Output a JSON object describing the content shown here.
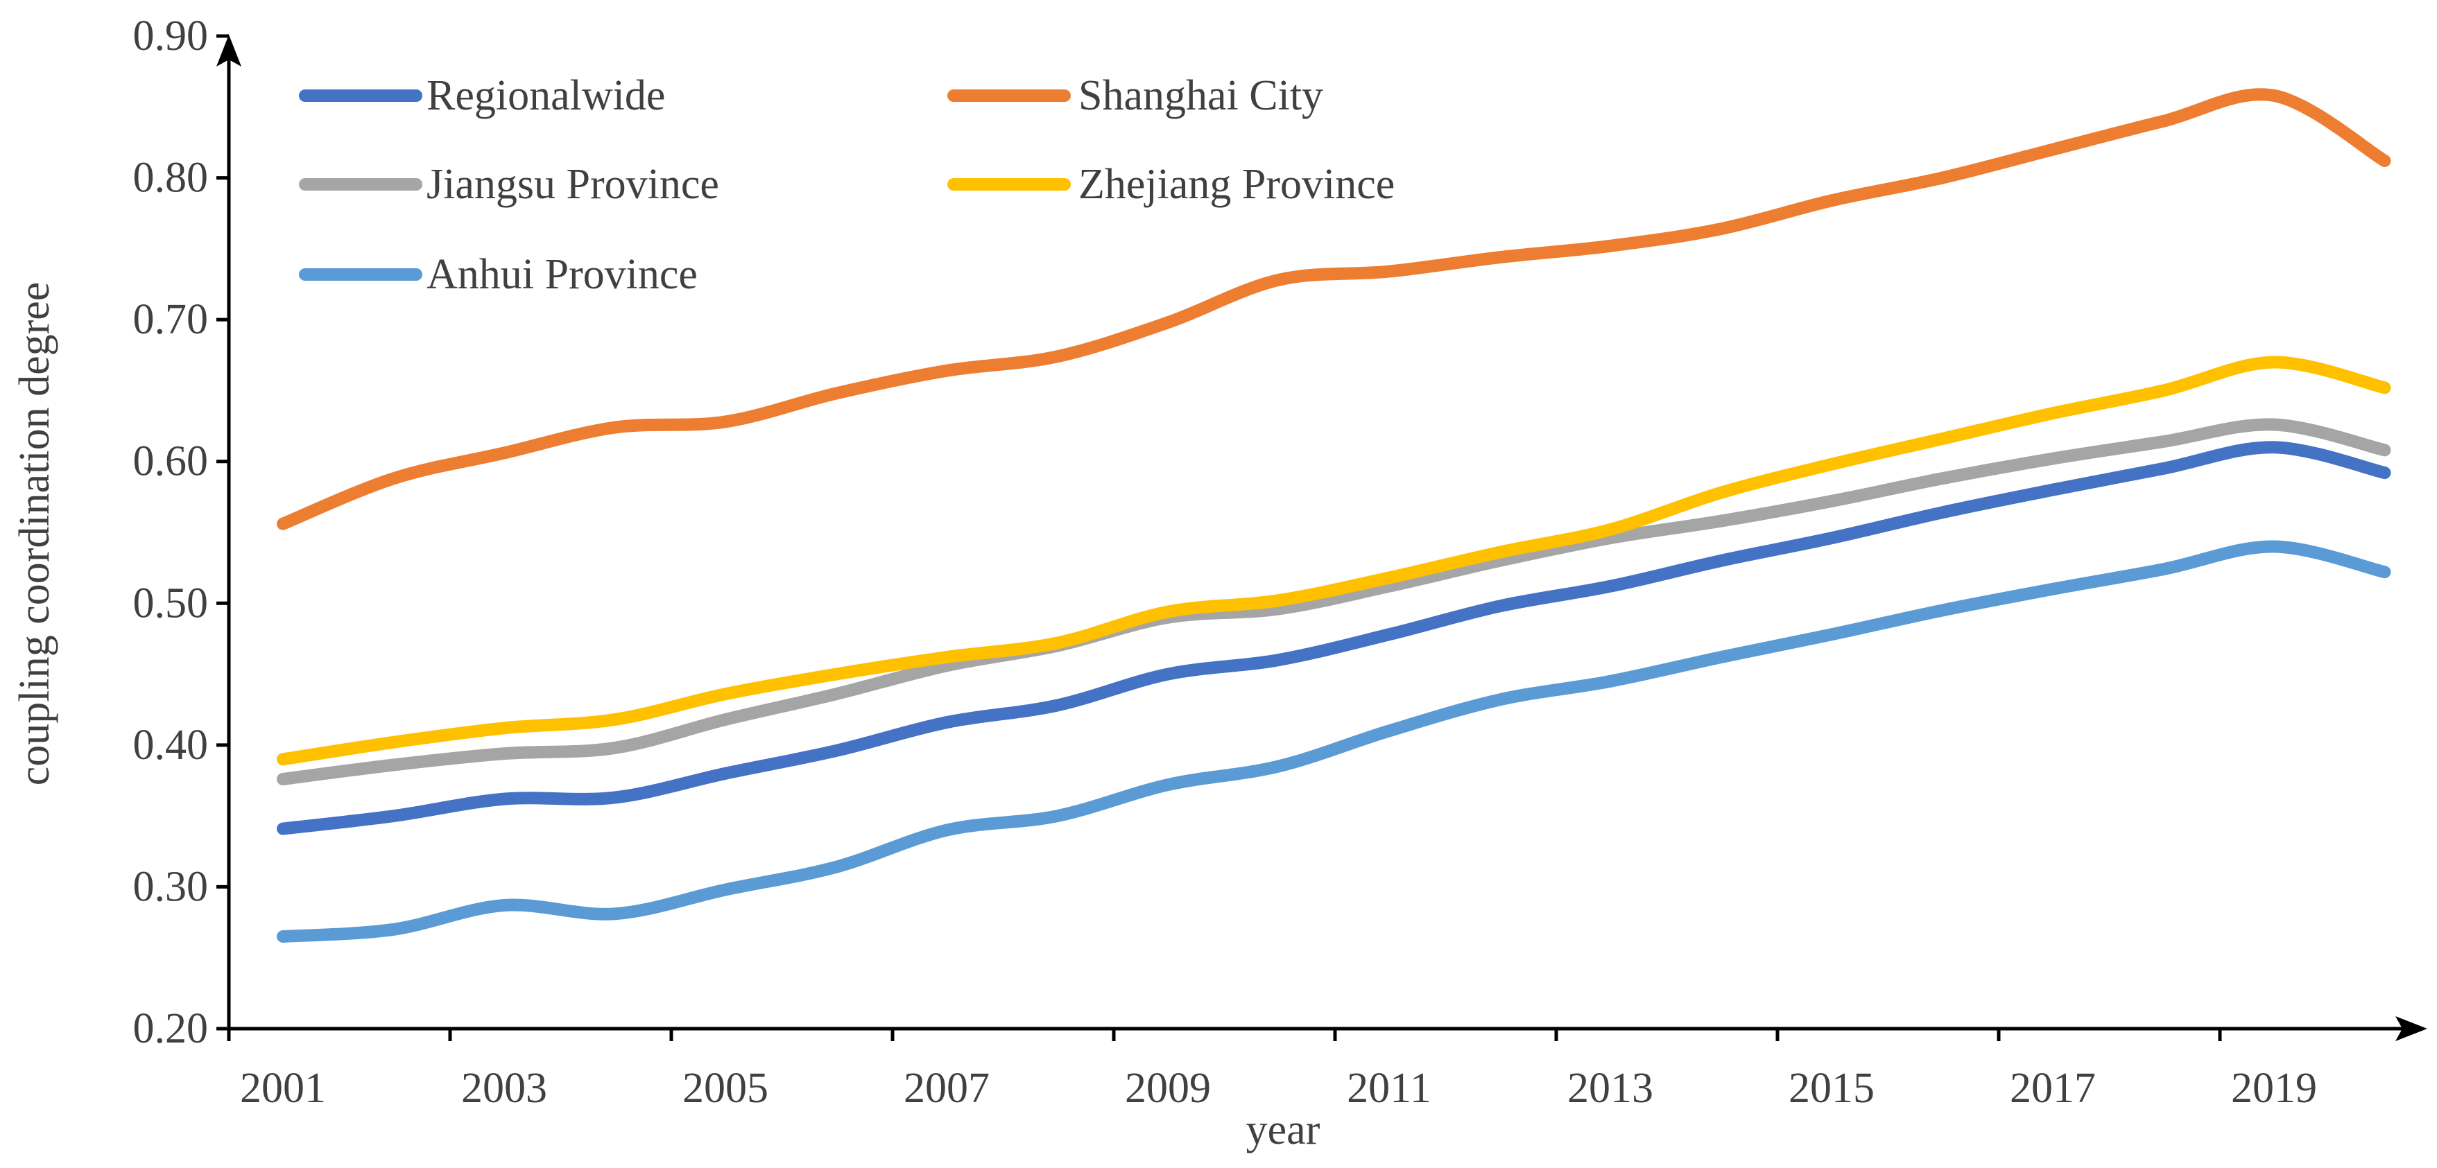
{
  "chart_data": {
    "type": "line",
    "title": "",
    "xlabel": "year",
    "ylabel": "coupling coordination degree",
    "ylim": [
      0.2,
      0.9
    ],
    "y_ticks": [
      "0.20",
      "0.30",
      "0.40",
      "0.50",
      "0.60",
      "0.70",
      "0.80",
      "0.90"
    ],
    "x_tick_labels": [
      "2001",
      "2003",
      "2005",
      "2007",
      "2009",
      "2011",
      "2013",
      "2015",
      "2017",
      "2019"
    ],
    "x": [
      2001,
      2002,
      2003,
      2004,
      2005,
      2006,
      2007,
      2008,
      2009,
      2010,
      2011,
      2012,
      2013,
      2014,
      2015,
      2016,
      2017,
      2018,
      2019,
      2020
    ],
    "legend_position": "top-left",
    "series": [
      {
        "name": "Regionalwide",
        "color": "#4472C4",
        "values": [
          0.341,
          0.35,
          0.362,
          0.363,
          0.38,
          0.396,
          0.416,
          0.428,
          0.45,
          0.46,
          0.478,
          0.498,
          0.512,
          0.53,
          0.546,
          0.564,
          0.58,
          0.595,
          0.61,
          0.592
        ]
      },
      {
        "name": "Shanghai City",
        "color": "#ED7D31",
        "values": [
          0.556,
          0.588,
          0.606,
          0.624,
          0.628,
          0.648,
          0.664,
          0.674,
          0.698,
          0.728,
          0.734,
          0.744,
          0.752,
          0.764,
          0.784,
          0.8,
          0.82,
          0.84,
          0.858,
          0.812
        ]
      },
      {
        "name": "Jiangsu Province",
        "color": "#A5A5A5",
        "values": [
          0.376,
          0.386,
          0.394,
          0.398,
          0.418,
          0.436,
          0.456,
          0.47,
          0.49,
          0.496,
          0.512,
          0.53,
          0.546,
          0.558,
          0.572,
          0.588,
          0.602,
          0.614,
          0.626,
          0.608
        ]
      },
      {
        "name": "Zhejiang Province",
        "color": "#FFC000",
        "values": [
          0.39,
          0.402,
          0.412,
          0.418,
          0.436,
          0.45,
          0.462,
          0.472,
          0.494,
          0.502,
          0.518,
          0.536,
          0.552,
          0.578,
          0.598,
          0.616,
          0.634,
          0.65,
          0.67,
          0.652
        ]
      },
      {
        "name": "Anhui Province",
        "color": "#5B9BD5",
        "values": [
          0.265,
          0.27,
          0.287,
          0.281,
          0.298,
          0.314,
          0.34,
          0.35,
          0.372,
          0.385,
          0.41,
          0.432,
          0.445,
          0.462,
          0.478,
          0.495,
          0.51,
          0.524,
          0.54,
          0.522
        ]
      }
    ]
  }
}
